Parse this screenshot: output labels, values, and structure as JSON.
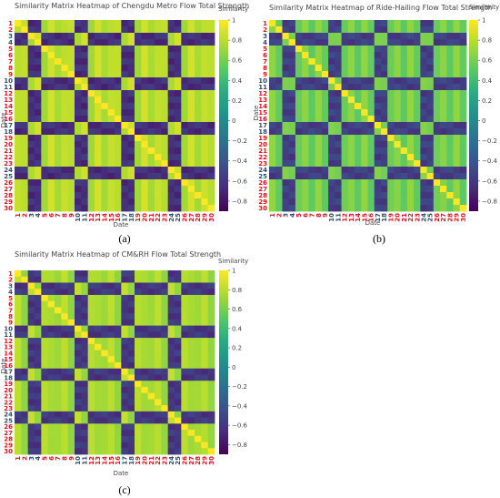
{
  "colors": {
    "weekend_tick": "#e8101a",
    "weekday_tick": "#2f4c6a",
    "colormap": "viridis"
  },
  "chart_data": [
    {
      "type": "heatmap",
      "title": "Similarity Matrix Heatmap of Chengdu Metro Flow Total Strength",
      "xlabel": "Date",
      "ylabel": "Date",
      "categories": [
        "1",
        "2",
        "3",
        "4",
        "5",
        "6",
        "7",
        "8",
        "9",
        "10",
        "11",
        "12",
        "13",
        "14",
        "15",
        "16",
        "17",
        "18",
        "19",
        "20",
        "21",
        "22",
        "23",
        "24",
        "25",
        "26",
        "27",
        "28",
        "29",
        "30"
      ],
      "weekend_days": [
        1,
        2,
        5,
        6,
        7,
        8,
        9,
        12,
        13,
        14,
        15,
        16,
        19,
        20,
        21,
        22,
        23,
        26,
        27,
        28,
        29,
        30
      ],
      "colorbar": {
        "label": "Similarity",
        "range": [
          -0.9,
          1
        ],
        "ticks": [
          "1",
          "0.8",
          "0.6",
          "0.4",
          "0.2",
          "0",
          "−0.2",
          "−0.4",
          "−0.6",
          "−0.8"
        ]
      },
      "block_values": {
        "same": 0.8,
        "cross": -0.65
      },
      "caption": "(a)"
    },
    {
      "type": "heatmap",
      "title": "Similarity Matrix Heatmap of Ride-Hailing Flow Total Strength",
      "xlabel": "Date",
      "ylabel": "Date",
      "categories": [
        "1",
        "2",
        "3",
        "4",
        "5",
        "6",
        "7",
        "8",
        "9",
        "10",
        "11",
        "12",
        "13",
        "14",
        "15",
        "16",
        "17",
        "18",
        "19",
        "20",
        "21",
        "22",
        "23",
        "24",
        "25",
        "26",
        "27",
        "28",
        "29",
        "30"
      ],
      "weekend_days": [
        1,
        2,
        5,
        6,
        7,
        8,
        9,
        12,
        13,
        14,
        15,
        16,
        19,
        20,
        21,
        22,
        23,
        26,
        27,
        28,
        29,
        30
      ],
      "colorbar": {
        "label": "Similarity",
        "range": [
          -0.9,
          1
        ],
        "ticks": [
          "1",
          "0.8",
          "0.6",
          "0.4",
          "0.2",
          "0",
          "−0.2",
          "−0.4",
          "−0.6",
          "−0.8"
        ]
      },
      "block_values": {
        "same": 0.6,
        "cross": -0.55
      },
      "caption": "(b)"
    },
    {
      "type": "heatmap",
      "title": "Similarity Matrix Heatmap of CM&RH Flow Total Strength",
      "xlabel": "Date",
      "ylabel": "Date",
      "categories": [
        "1",
        "2",
        "3",
        "4",
        "5",
        "6",
        "7",
        "8",
        "9",
        "10",
        "11",
        "12",
        "13",
        "14",
        "15",
        "16",
        "17",
        "18",
        "19",
        "20",
        "21",
        "22",
        "23",
        "24",
        "25",
        "26",
        "27",
        "28",
        "29",
        "30"
      ],
      "weekend_days": [
        1,
        2,
        5,
        6,
        7,
        8,
        9,
        12,
        13,
        14,
        15,
        16,
        19,
        20,
        21,
        22,
        23,
        26,
        27,
        28,
        29,
        30
      ],
      "colorbar": {
        "label": "Similarity",
        "range": [
          -0.9,
          1
        ],
        "ticks": [
          "1",
          "0.8",
          "0.6",
          "0.4",
          "0.2",
          "0",
          "−0.2",
          "−0.4",
          "−0.6",
          "−0.8"
        ]
      },
      "block_values": {
        "same": 0.75,
        "cross": -0.6
      },
      "caption": "(c)"
    }
  ]
}
